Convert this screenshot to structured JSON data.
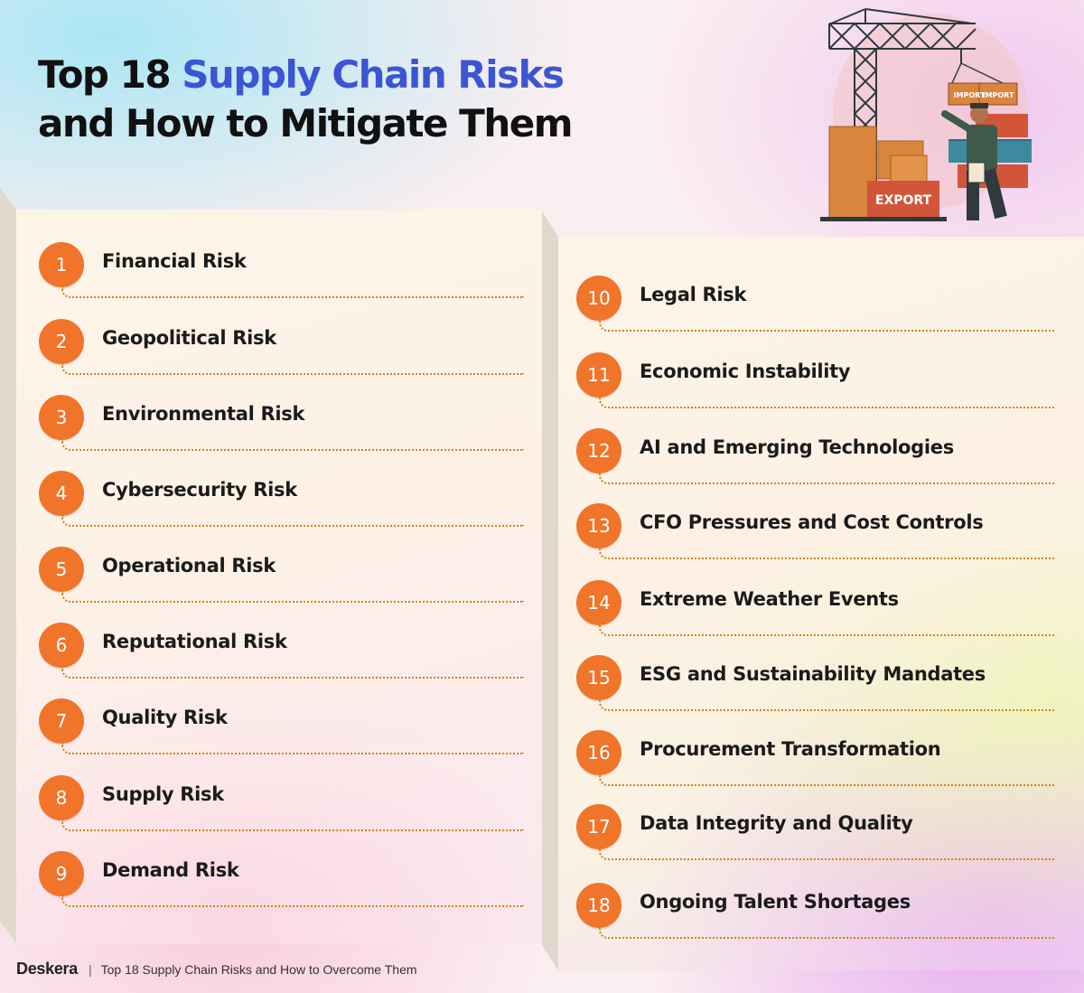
{
  "title": {
    "line1_prefix": "Top 18 ",
    "line1_accent": "Supply Chain Risks",
    "line2": "and How to Mitigate Them"
  },
  "illustration": {
    "crate_labels": [
      "IMPORT",
      "IMPORT"
    ],
    "container_label": "EXPORT"
  },
  "risks_left": [
    {
      "num": "1",
      "label": "Financial Risk"
    },
    {
      "num": "2",
      "label": "Geopolitical Risk"
    },
    {
      "num": "3",
      "label": "Environmental Risk"
    },
    {
      "num": "4",
      "label": "Cybersecurity Risk"
    },
    {
      "num": "5",
      "label": "Operational Risk"
    },
    {
      "num": "6",
      "label": "Reputational Risk"
    },
    {
      "num": "7",
      "label": "Quality Risk"
    },
    {
      "num": "8",
      "label": "Supply Risk"
    },
    {
      "num": "9",
      "label": "Demand Risk"
    }
  ],
  "risks_right": [
    {
      "num": "10",
      "label": "Legal Risk"
    },
    {
      "num": "11",
      "label": "Economic Instability"
    },
    {
      "num": "12",
      "label": "AI and Emerging Technologies"
    },
    {
      "num": "13",
      "label": "CFO Pressures and Cost Controls"
    },
    {
      "num": "14",
      "label": "Extreme Weather Events"
    },
    {
      "num": "15",
      "label": "ESG and Sustainability Mandates"
    },
    {
      "num": "16",
      "label": "Procurement Transformation"
    },
    {
      "num": "17",
      "label": "Data Integrity and Quality"
    },
    {
      "num": "18",
      "label": "Ongoing Talent Shortages"
    }
  ],
  "footer": {
    "brand": "Deskera",
    "separator": "|",
    "tagline": "Top 18 Supply Chain Risks and How to Overcome Them"
  },
  "colors": {
    "accent_blue": "#3c55d2",
    "number_orange": "#f0742a",
    "leader_orange": "#d0841e",
    "title_text": "#111111"
  }
}
